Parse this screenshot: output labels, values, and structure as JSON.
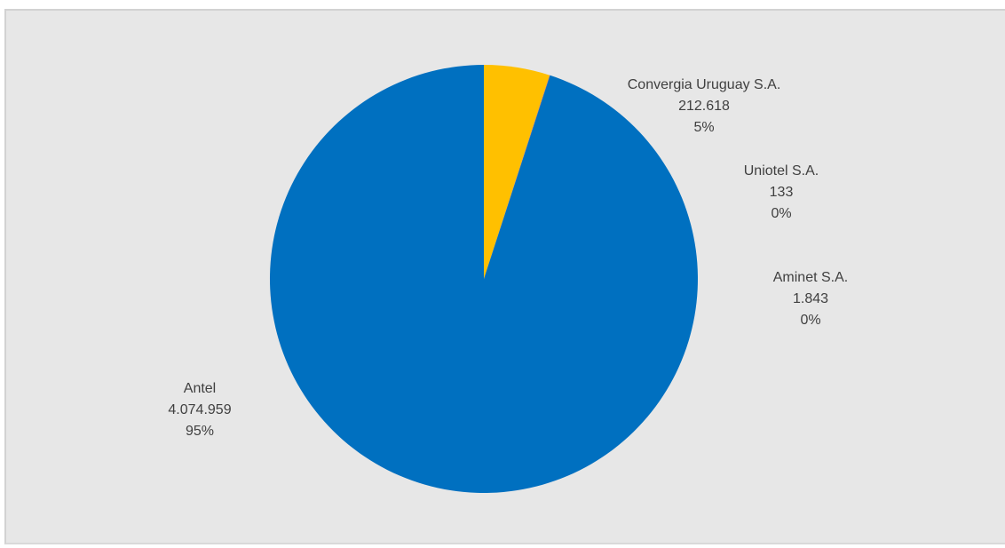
{
  "chart_data": {
    "type": "pie",
    "slices": [
      {
        "label": "Convergia Uruguay S.A.",
        "value": 212618,
        "value_text": "212.618",
        "percent_text": "5%",
        "color": "#ffc000"
      },
      {
        "label": "Uniotel S.A.",
        "value": 133,
        "value_text": "133",
        "percent_text": "0%",
        "color": "#a5a5a5"
      },
      {
        "label": "Aminet S.A.",
        "value": 1843,
        "value_text": "1.843",
        "percent_text": "0%",
        "color": "#ed7d31"
      },
      {
        "label": "Antel",
        "value": 4074959,
        "value_text": "4.074.959",
        "percent_text": "95%",
        "color": "#0070c0"
      }
    ],
    "legend": "none",
    "data_labels": "outside"
  }
}
